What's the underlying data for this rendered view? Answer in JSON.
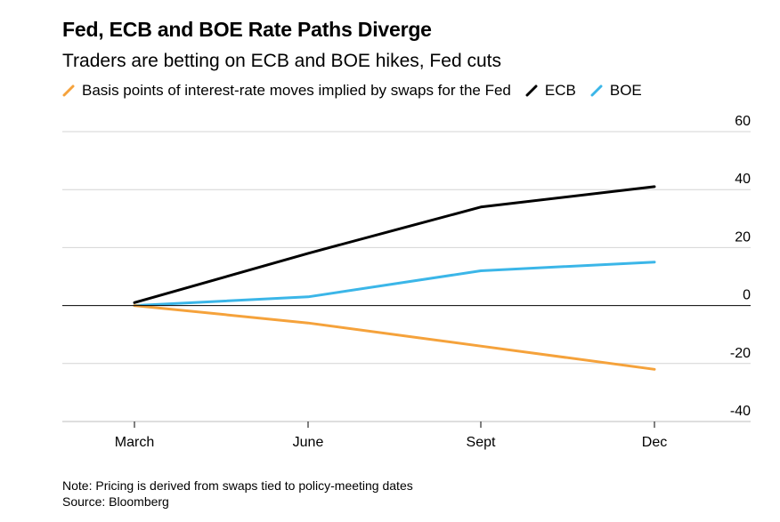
{
  "colors": {
    "fed": "#f5a23b",
    "ecb": "#000000",
    "boe": "#3bb6e8",
    "grid": "#d4d4d4",
    "zero": "#000000"
  },
  "chart_data": {
    "type": "line",
    "title": "Fed, ECB and BOE Rate Paths Diverge",
    "subtitle": "Traders are betting on ECB and BOE hikes, Fed cuts",
    "categories": [
      "March",
      "June",
      "Sept",
      "Dec"
    ],
    "series": [
      {
        "name": "Basis points of interest-rate moves implied by swaps for the Fed",
        "key": "fed",
        "values": [
          0,
          -6,
          -14,
          -22
        ]
      },
      {
        "name": "ECB",
        "key": "ecb",
        "values": [
          1,
          18,
          34,
          41
        ]
      },
      {
        "name": "BOE",
        "key": "boe",
        "values": [
          0,
          3,
          12,
          15
        ]
      }
    ],
    "ylim": [
      -40,
      60
    ],
    "yticks": [
      60,
      40,
      20,
      0,
      -20,
      -40
    ],
    "ytick_labels": [
      "60",
      "40",
      "20",
      "0",
      "-20",
      "-40"
    ],
    "xlabel": "",
    "ylabel": "",
    "y_axis_side": "right",
    "grid": true,
    "legend_position": "top-left"
  },
  "note": "Note: Pricing is derived from swaps tied to policy-meeting dates",
  "source": "Source: Bloomberg"
}
